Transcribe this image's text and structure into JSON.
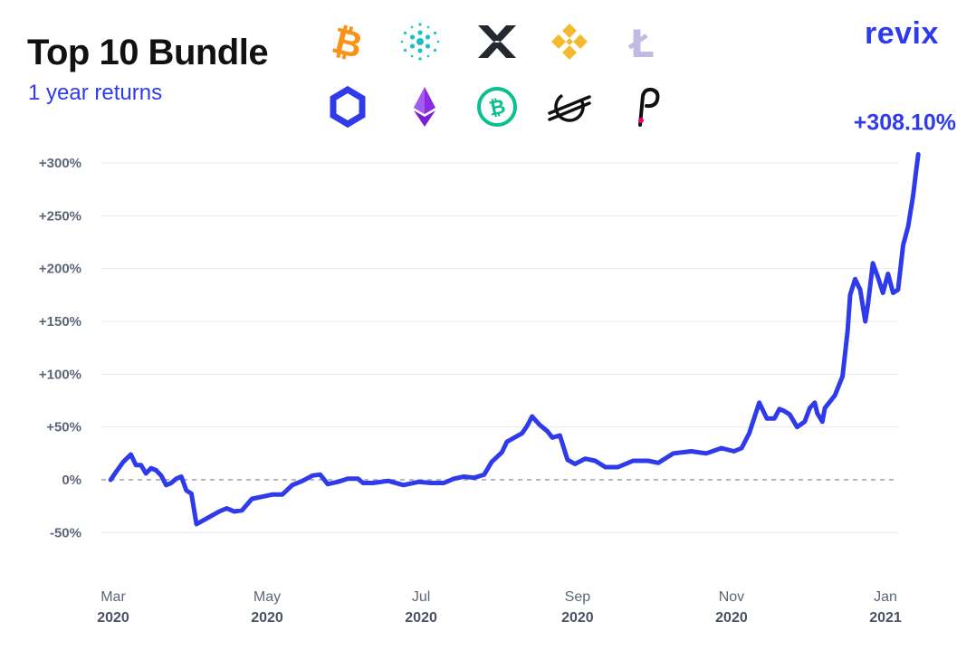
{
  "header": {
    "title": "Top 10 Bundle",
    "subtitle": "1 year returns",
    "brand": "revix"
  },
  "icons": [
    {
      "name": "bitcoin-icon",
      "glyph": "₿",
      "color": "#f7931a"
    },
    {
      "name": "cardano-icon",
      "color": "#1fbfc9"
    },
    {
      "name": "xrp-icon",
      "color": "#23292f"
    },
    {
      "name": "binance-coin-icon",
      "color": "#f3ba2f"
    },
    {
      "name": "litecoin-icon",
      "glyph": "Ł",
      "color": "#bfbbe3"
    },
    {
      "name": "chainlink-icon",
      "color": "#2f3bea"
    },
    {
      "name": "ethereum-icon",
      "color": "#8a2be2"
    },
    {
      "name": "bitcoin-cash-icon",
      "glyph": "₿",
      "color": "#0ac18e"
    },
    {
      "name": "stellar-icon",
      "color": "#111111"
    },
    {
      "name": "polkadot-icon",
      "glyph": "P",
      "color": "#111111",
      "accent": "#e6007a"
    }
  ],
  "chart_data": {
    "type": "line",
    "series": [
      {
        "color": "#2f3bea",
        "points": [
          [
            "2020-02-29",
            0
          ],
          [
            "2020-03-02",
            7
          ],
          [
            "2020-03-05",
            17
          ],
          [
            "2020-03-08",
            24
          ],
          [
            "2020-03-10",
            14
          ],
          [
            "2020-03-12",
            14
          ],
          [
            "2020-03-14",
            6
          ],
          [
            "2020-03-16",
            11
          ],
          [
            "2020-03-18",
            9
          ],
          [
            "2020-03-20",
            4
          ],
          [
            "2020-03-22",
            -5
          ],
          [
            "2020-03-24",
            -3
          ],
          [
            "2020-03-26",
            1
          ],
          [
            "2020-03-28",
            3
          ],
          [
            "2020-03-30",
            -10
          ],
          [
            "2020-04-01",
            -13
          ],
          [
            "2020-04-03",
            -42
          ],
          [
            "2020-04-06",
            -38
          ],
          [
            "2020-04-09",
            -34
          ],
          [
            "2020-04-12",
            -30
          ],
          [
            "2020-04-15",
            -27
          ],
          [
            "2020-04-18",
            -30
          ],
          [
            "2020-04-21",
            -29
          ],
          [
            "2020-04-25",
            -18
          ],
          [
            "2020-04-29",
            -16
          ],
          [
            "2020-05-03",
            -14
          ],
          [
            "2020-05-07",
            -14
          ],
          [
            "2020-05-11",
            -5
          ],
          [
            "2020-05-15",
            -1
          ],
          [
            "2020-05-19",
            4
          ],
          [
            "2020-05-22",
            5
          ],
          [
            "2020-05-25",
            -4
          ],
          [
            "2020-05-29",
            -2
          ],
          [
            "2020-06-02",
            1
          ],
          [
            "2020-06-06",
            1
          ],
          [
            "2020-06-08",
            -3
          ],
          [
            "2020-06-12",
            -3
          ],
          [
            "2020-06-18",
            -1
          ],
          [
            "2020-06-24",
            -5
          ],
          [
            "2020-06-30",
            -2
          ],
          [
            "2020-07-05",
            -3
          ],
          [
            "2020-07-10",
            -3
          ],
          [
            "2020-07-14",
            1
          ],
          [
            "2020-07-18",
            3
          ],
          [
            "2020-07-22",
            2
          ],
          [
            "2020-07-26",
            5
          ],
          [
            "2020-07-29",
            17
          ],
          [
            "2020-08-02",
            26
          ],
          [
            "2020-08-04",
            36
          ],
          [
            "2020-08-07",
            40
          ],
          [
            "2020-08-10",
            44
          ],
          [
            "2020-08-12",
            51
          ],
          [
            "2020-08-14",
            60
          ],
          [
            "2020-08-17",
            52
          ],
          [
            "2020-08-20",
            46
          ],
          [
            "2020-08-22",
            40
          ],
          [
            "2020-08-25",
            42
          ],
          [
            "2020-08-28",
            19
          ],
          [
            "2020-08-31",
            15
          ],
          [
            "2020-09-04",
            20
          ],
          [
            "2020-09-08",
            18
          ],
          [
            "2020-09-12",
            12
          ],
          [
            "2020-09-17",
            12
          ],
          [
            "2020-09-23",
            18
          ],
          [
            "2020-09-29",
            18
          ],
          [
            "2020-10-03",
            16
          ],
          [
            "2020-10-09",
            25
          ],
          [
            "2020-10-16",
            27
          ],
          [
            "2020-10-22",
            25
          ],
          [
            "2020-10-28",
            30
          ],
          [
            "2020-11-02",
            27
          ],
          [
            "2020-11-05",
            30
          ],
          [
            "2020-11-08",
            44
          ],
          [
            "2020-11-12",
            73
          ],
          [
            "2020-11-15",
            58
          ],
          [
            "2020-11-18",
            58
          ],
          [
            "2020-11-20",
            67
          ],
          [
            "2020-11-22",
            65
          ],
          [
            "2020-11-24",
            62
          ],
          [
            "2020-11-27",
            50
          ],
          [
            "2020-11-30",
            55
          ],
          [
            "2020-12-02",
            68
          ],
          [
            "2020-12-04",
            73
          ],
          [
            "2020-12-05",
            63
          ],
          [
            "2020-12-07",
            55
          ],
          [
            "2020-12-08",
            68
          ],
          [
            "2020-12-12",
            80
          ],
          [
            "2020-12-15",
            98
          ],
          [
            "2020-12-17",
            141
          ],
          [
            "2020-12-18",
            175
          ],
          [
            "2020-12-20",
            190
          ],
          [
            "2020-12-22",
            180
          ],
          [
            "2020-12-24",
            150
          ],
          [
            "2020-12-25",
            165
          ],
          [
            "2020-12-27",
            205
          ],
          [
            "2020-12-29",
            192
          ],
          [
            "2020-12-31",
            177
          ],
          [
            "2021-01-02",
            195
          ],
          [
            "2021-01-04",
            177
          ],
          [
            "2021-01-06",
            180
          ],
          [
            "2021-01-08",
            222
          ],
          [
            "2021-01-10",
            240
          ],
          [
            "2021-01-12",
            270
          ],
          [
            "2021-01-13",
            290
          ],
          [
            "2021-01-14",
            308.1
          ]
        ]
      }
    ],
    "ylim": [
      -80,
      320
    ],
    "yticks": [
      {
        "value": 300,
        "label": "+300%"
      },
      {
        "value": 250,
        "label": "+250%"
      },
      {
        "value": 200,
        "label": "+200%"
      },
      {
        "value": 150,
        "label": "+150%"
      },
      {
        "value": 100,
        "label": "+100%"
      },
      {
        "value": 50,
        "label": "+50%"
      },
      {
        "value": 0,
        "label": "0%"
      },
      {
        "value": -50,
        "label": "-50%"
      }
    ],
    "xticks": [
      {
        "date": "2020-03-01",
        "month": "Mar",
        "year": "2020"
      },
      {
        "date": "2020-05-01",
        "month": "May",
        "year": "2020"
      },
      {
        "date": "2020-07-01",
        "month": "Jul",
        "year": "2020"
      },
      {
        "date": "2020-09-01",
        "month": "Sep",
        "year": "2020"
      },
      {
        "date": "2020-11-01",
        "month": "Nov",
        "year": "2020"
      },
      {
        "date": "2021-01-01",
        "month": "Jan",
        "year": "2021"
      }
    ],
    "grid": true,
    "zero_line_style": "dashed",
    "end_label": "+308.10%"
  }
}
